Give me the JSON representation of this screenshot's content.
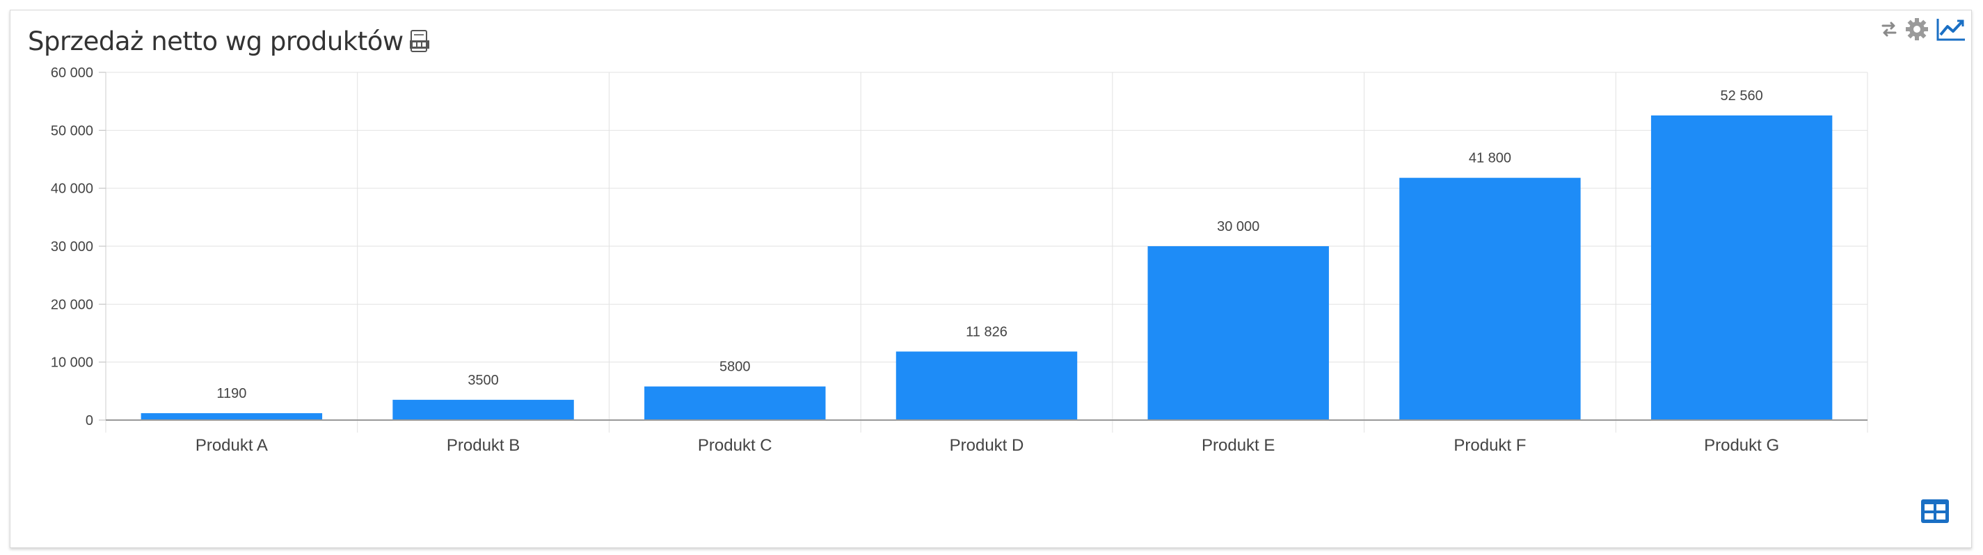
{
  "header": {
    "title": "Sprzedaż netto wg produktów"
  },
  "icons": {
    "csv": "csv-export-icon",
    "refresh": "refresh-arrows-icon",
    "settings": "gear-icon",
    "chart": "line-chart-icon",
    "table": "table-view-icon"
  },
  "colors": {
    "bar": "#1e8cf7",
    "accent": "#1a6fc4",
    "grid": "#e2e2e2"
  },
  "y_ticks": [
    "0",
    "10 000",
    "20 000",
    "30 000",
    "40 000",
    "50 000",
    "60 000"
  ],
  "chart_data": {
    "type": "bar",
    "title": "Sprzedaż netto wg produktów",
    "xlabel": "",
    "ylabel": "",
    "categories": [
      "Produkt A",
      "Produkt B",
      "Produkt C",
      "Produkt D",
      "Produkt E",
      "Produkt F",
      "Produkt G"
    ],
    "values": [
      1190,
      3500,
      5800,
      11826,
      30000,
      41800,
      52560
    ],
    "value_labels": [
      "1190",
      "3500",
      "5800",
      "11 826",
      "30 000",
      "41 800",
      "52 560"
    ],
    "ylim": [
      0,
      60000
    ],
    "ytick_step": 10000,
    "grid": true,
    "legend": "none"
  }
}
